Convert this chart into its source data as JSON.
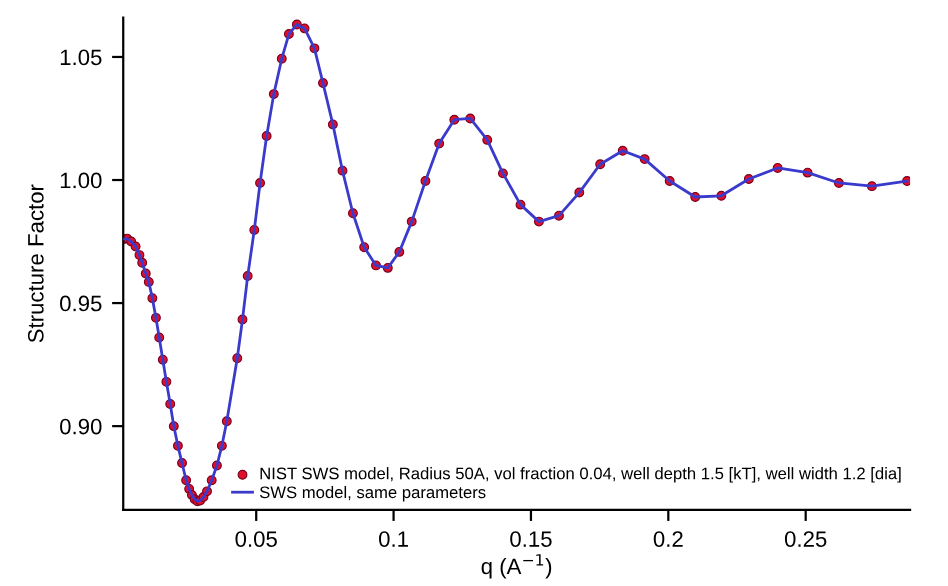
{
  "chart_data": {
    "type": "line",
    "xlabel": "q (A$^{−1}$)",
    "ylabel": "Structure Factor",
    "xlim": [
      0.0016,
      0.288
    ],
    "ylim": [
      0.866,
      1.066
    ],
    "xticks": [
      0.05,
      0.1,
      0.15,
      0.2,
      0.25
    ],
    "yticks": [
      {
        "value": 0.9,
        "label": "0.90"
      },
      0.95,
      {
        "value": 1.0,
        "label": "1.00"
      },
      1.05
    ],
    "grid": false,
    "legend": "lower right",
    "x": [
      0.0018,
      0.003,
      0.0045,
      0.0061,
      0.0075,
      0.0085,
      0.0098,
      0.0109,
      0.0122,
      0.0135,
      0.0147,
      0.016,
      0.0173,
      0.0187,
      0.02,
      0.0215,
      0.023,
      0.0245,
      0.0256,
      0.0266,
      0.0276,
      0.0286,
      0.0296,
      0.0308,
      0.0321,
      0.0338,
      0.0357,
      0.0375,
      0.0393,
      0.0431,
      0.045,
      0.0469,
      0.0493,
      0.0514,
      0.0538,
      0.0564,
      0.0593,
      0.0619,
      0.0648,
      0.0676,
      0.0712,
      0.0743,
      0.0779,
      0.0814,
      0.0852,
      0.0893,
      0.0936,
      0.0979,
      0.1021,
      0.1066,
      0.1116,
      0.1166,
      0.1221,
      0.1279,
      0.1341,
      0.1398,
      0.1462,
      0.1529,
      0.1602,
      0.1676,
      0.1752,
      0.1834,
      0.1914,
      0.2005,
      0.2098,
      0.2193,
      0.2293,
      0.2398,
      0.2507,
      0.2621,
      0.2741,
      0.2869
    ],
    "series": [
      {
        "name": "NIST SWS model, Radius 50A, vol fraction 0.04, well depth 1.5 [kT], well width 1.2 [dia]",
        "type": "scatter",
        "marker": "circle",
        "color": "#e0102a",
        "values": [
          0.976,
          0.9762,
          0.975,
          0.973,
          0.9695,
          0.9664,
          0.962,
          0.9586,
          0.952,
          0.944,
          0.936,
          0.927,
          0.918,
          0.909,
          0.9,
          0.892,
          0.885,
          0.878,
          0.8745,
          0.872,
          0.8703,
          0.8695,
          0.8698,
          0.8712,
          0.8735,
          0.878,
          0.884,
          0.892,
          0.902,
          0.9276,
          0.9433,
          0.961,
          0.9797,
          0.9988,
          1.0179,
          1.0349,
          1.0493,
          1.0593,
          1.0632,
          1.0616,
          1.0535,
          1.0394,
          1.0226,
          1.0038,
          0.9865,
          0.9727,
          0.9653,
          0.9643,
          0.9708,
          0.9831,
          0.9996,
          1.0148,
          1.0245,
          1.025,
          1.0163,
          1.0027,
          0.99,
          0.9831,
          0.9855,
          0.9949,
          1.0064,
          1.0119,
          1.0085,
          0.9996,
          0.9931,
          0.9936,
          1.0004,
          1.0049,
          1.003,
          0.9988,
          0.9975,
          0.9996
        ]
      },
      {
        "name": "SWS model, same parameters",
        "line_style": "solid",
        "color": "#3a3acc",
        "values": [
          0.976,
          0.9762,
          0.975,
          0.973,
          0.9695,
          0.9664,
          0.962,
          0.9586,
          0.952,
          0.944,
          0.936,
          0.927,
          0.918,
          0.909,
          0.9,
          0.892,
          0.885,
          0.878,
          0.8745,
          0.872,
          0.8703,
          0.8695,
          0.8698,
          0.8712,
          0.8735,
          0.878,
          0.884,
          0.892,
          0.902,
          0.9276,
          0.9433,
          0.961,
          0.9797,
          0.9988,
          1.0179,
          1.0349,
          1.0493,
          1.0593,
          1.0632,
          1.0616,
          1.0535,
          1.0394,
          1.0226,
          1.0038,
          0.9865,
          0.9727,
          0.9653,
          0.9643,
          0.9708,
          0.9831,
          0.9996,
          1.0148,
          1.0245,
          1.025,
          1.0163,
          1.0027,
          0.99,
          0.9831,
          0.9855,
          0.9949,
          1.0064,
          1.0119,
          1.0085,
          0.9996,
          0.9931,
          0.9936,
          1.0004,
          1.0049,
          1.003,
          0.9988,
          0.9975,
          0.9996
        ]
      }
    ]
  }
}
